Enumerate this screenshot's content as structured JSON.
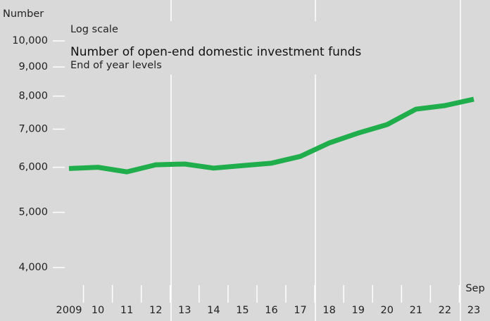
{
  "chart_data": {
    "type": "line",
    "y_axis_label": "Number",
    "scale_note": "Log scale",
    "title": "Number of open-end domestic investment funds",
    "subtitle": "End of year levels",
    "annotation": "Sep",
    "log_scale": true,
    "categories": [
      "2009",
      "10",
      "11",
      "12",
      "13",
      "14",
      "15",
      "16",
      "17",
      "18",
      "19",
      "20",
      "21",
      "22",
      "23"
    ],
    "series": [
      {
        "name": "Number of open-end domestic investment funds",
        "color": "#1fae4b",
        "values": [
          5970,
          6000,
          5890,
          6060,
          6080,
          5980,
          6040,
          6100,
          6270,
          6620,
          6890,
          7130,
          7590,
          7700,
          7900
        ]
      }
    ],
    "ylim": [
      3500,
      11800
    ],
    "yticks": [
      {
        "value": 4000,
        "label": "4,000"
      },
      {
        "value": 5000,
        "label": "5,000"
      },
      {
        "value": 6000,
        "label": "6,000"
      },
      {
        "value": 7000,
        "label": "7,000"
      },
      {
        "value": 8000,
        "label": "8,000"
      },
      {
        "value": 9000,
        "label": "9,000"
      },
      {
        "value": 10000,
        "label": "10,000"
      }
    ]
  }
}
